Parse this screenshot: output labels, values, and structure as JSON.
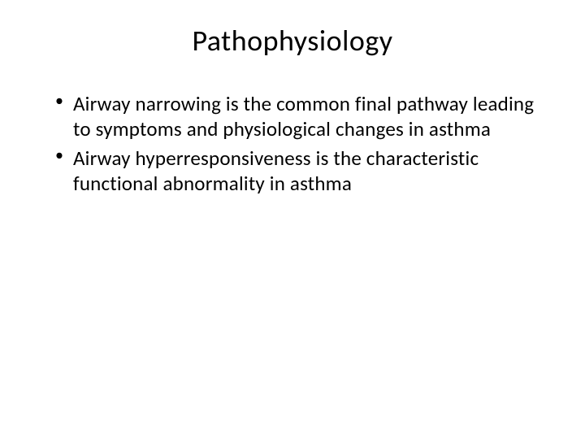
{
  "slide": {
    "title": "Pathophysiology",
    "bullets": [
      "Airway narrowing is the common final pathway leading to symptoms and physiological changes in asthma",
      "Airway hyperresponsiveness is the characteristic functional abnormality in asthma"
    ]
  },
  "styling": {
    "background_color": "#ffffff",
    "text_color": "#000000",
    "title_fontsize": 36,
    "body_fontsize": 25,
    "font_family": "Calibri",
    "title_align": "center",
    "bullet_char": "•"
  }
}
